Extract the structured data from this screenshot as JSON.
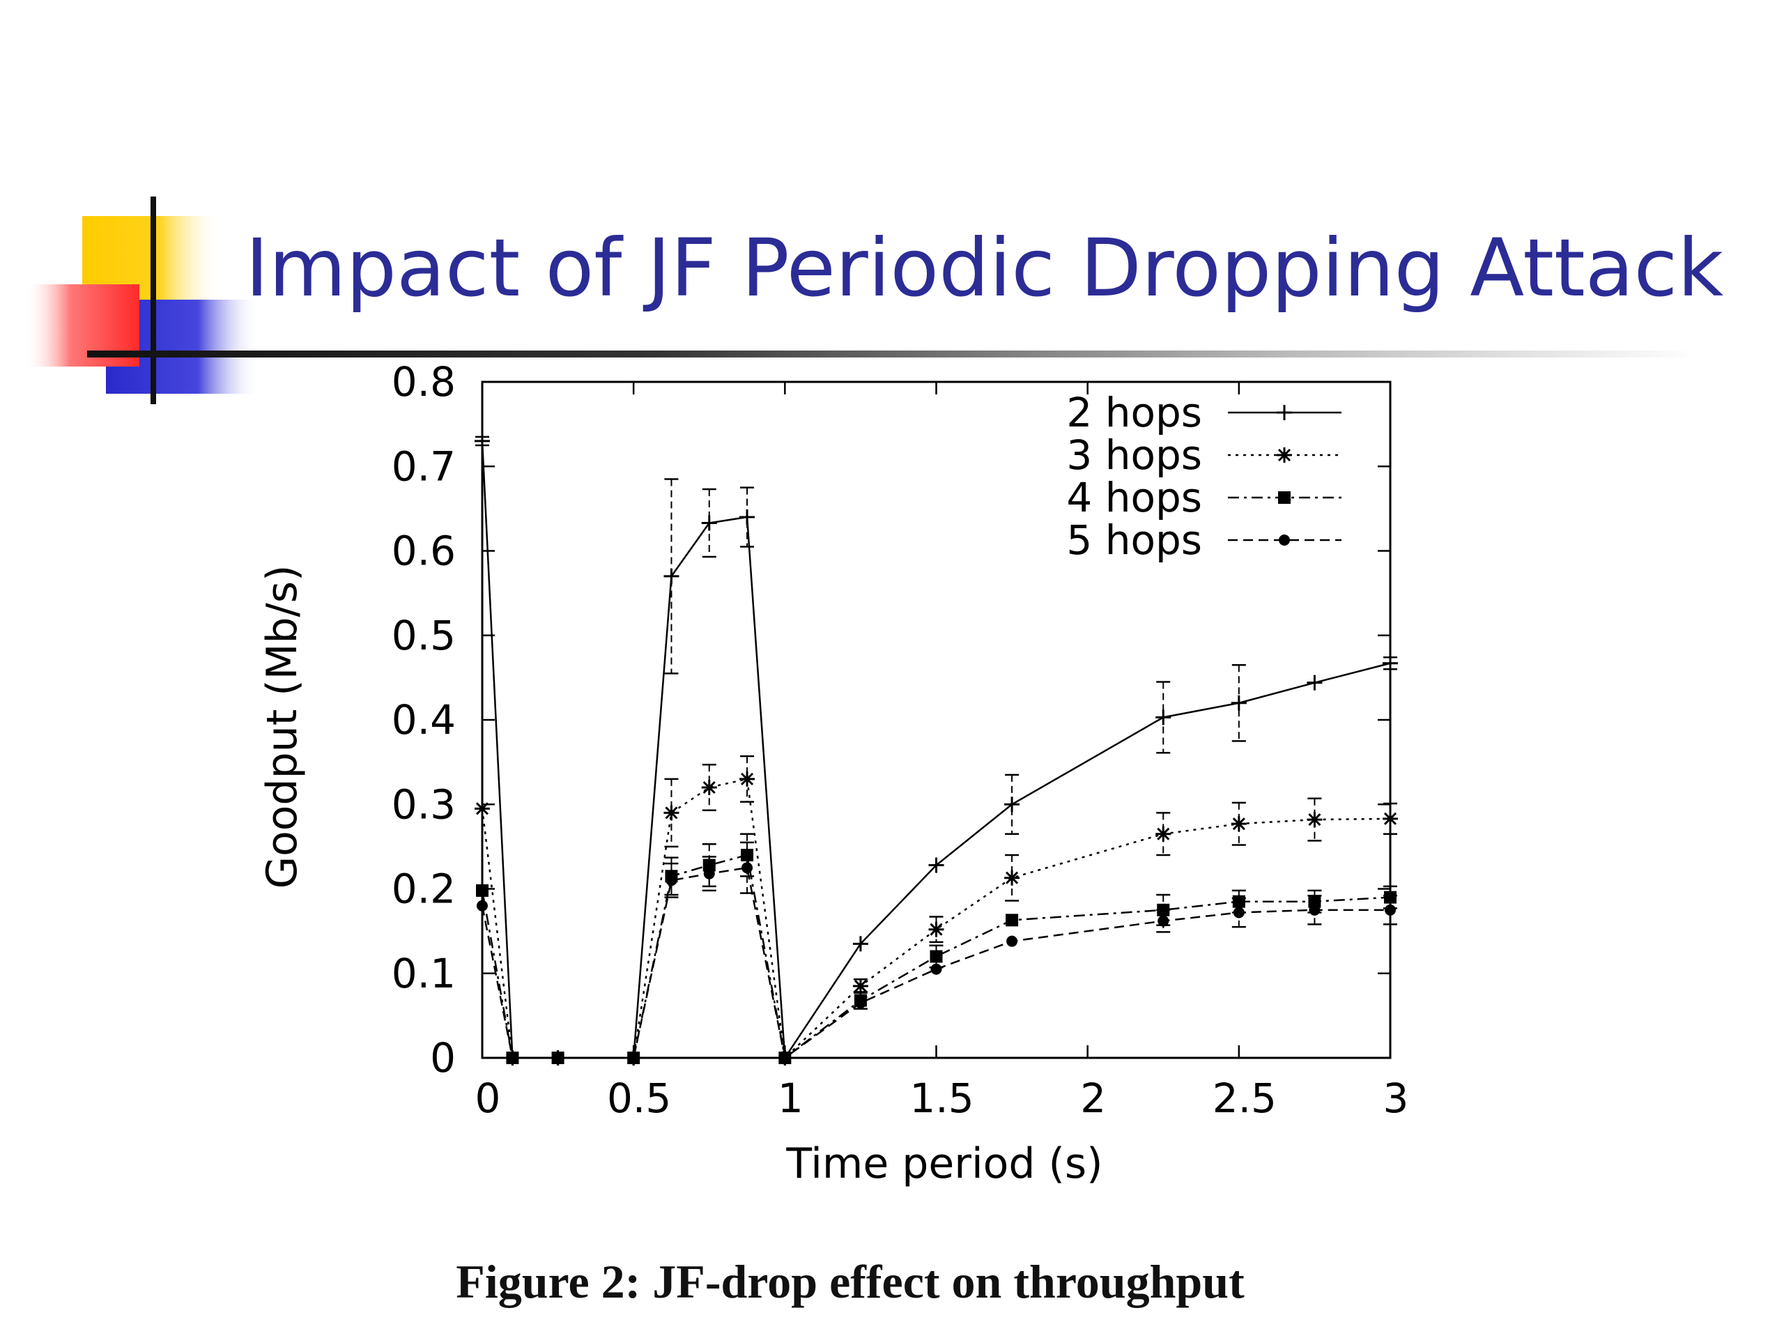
{
  "slide": {
    "title": "Impact of JF Periodic Dropping Attack",
    "caption": "Figure 2: JF-drop effect on throughput"
  },
  "colors": {
    "title": "#2c2c96",
    "accent_yellow": "#ffcc00",
    "accent_red": "#ff3b3b",
    "accent_blue": "#3333cc",
    "series": "#000000"
  },
  "chart_data": {
    "type": "line",
    "title": "",
    "xlabel": "Time period (s)",
    "ylabel": "Goodput (Mb/s)",
    "xlim": [
      0,
      3
    ],
    "ylim": [
      0,
      0.8
    ],
    "xticks": [
      "0",
      "0.5",
      "1",
      "1.5",
      "2",
      "2.5",
      "3"
    ],
    "yticks": [
      "0",
      "0.1",
      "0.2",
      "0.3",
      "0.4",
      "0.5",
      "0.6",
      "0.7",
      "0.8"
    ],
    "legend_position": "top-right",
    "grid": false,
    "error_bars": true,
    "series": [
      {
        "name": "2 hops",
        "marker": "plus",
        "dash": "solid",
        "points": [
          {
            "x": 0,
            "y": 0.73,
            "err": 0.005
          },
          {
            "x": 0.1,
            "y": 0
          },
          {
            "x": 0.25,
            "y": 0
          },
          {
            "x": 0.5,
            "y": 0
          },
          {
            "x": 0.625,
            "y": 0.57,
            "err": 0.115
          },
          {
            "x": 0.75,
            "y": 0.633,
            "err": 0.04
          },
          {
            "x": 0.875,
            "y": 0.64,
            "err": 0.035
          },
          {
            "x": 1,
            "y": 0
          },
          {
            "x": 1.25,
            "y": 0.135
          },
          {
            "x": 1.5,
            "y": 0.228
          },
          {
            "x": 1.75,
            "y": 0.3,
            "err": 0.035
          },
          {
            "x": 2.25,
            "y": 0.403,
            "err": 0.042
          },
          {
            "x": 2.5,
            "y": 0.42,
            "err": 0.045
          },
          {
            "x": 2.75,
            "y": 0.444
          },
          {
            "x": 3,
            "y": 0.467,
            "err": 0.007
          }
        ]
      },
      {
        "name": "3 hops",
        "marker": "star",
        "dash": "dotted",
        "points": [
          {
            "x": 0,
            "y": 0.295
          },
          {
            "x": 0.1,
            "y": 0
          },
          {
            "x": 0.25,
            "y": 0
          },
          {
            "x": 0.5,
            "y": 0
          },
          {
            "x": 0.625,
            "y": 0.29,
            "err": 0.04
          },
          {
            "x": 0.75,
            "y": 0.32,
            "err": 0.027
          },
          {
            "x": 0.875,
            "y": 0.33,
            "err": 0.027
          },
          {
            "x": 1,
            "y": 0
          },
          {
            "x": 1.25,
            "y": 0.085,
            "err": 0.008
          },
          {
            "x": 1.5,
            "y": 0.152,
            "err": 0.015
          },
          {
            "x": 1.75,
            "y": 0.213,
            "err": 0.027
          },
          {
            "x": 2.25,
            "y": 0.265,
            "err": 0.025
          },
          {
            "x": 2.5,
            "y": 0.277,
            "err": 0.025
          },
          {
            "x": 2.75,
            "y": 0.282,
            "err": 0.025
          },
          {
            "x": 3,
            "y": 0.283,
            "err": 0.018
          }
        ]
      },
      {
        "name": "4 hops",
        "marker": "square",
        "dash": "dashdot",
        "points": [
          {
            "x": 0,
            "y": 0.198
          },
          {
            "x": 0.1,
            "y": 0
          },
          {
            "x": 0.25,
            "y": 0
          },
          {
            "x": 0.5,
            "y": 0
          },
          {
            "x": 0.625,
            "y": 0.215,
            "err": 0.022
          },
          {
            "x": 0.75,
            "y": 0.228,
            "err": 0.025
          },
          {
            "x": 0.875,
            "y": 0.24,
            "err": 0.025
          },
          {
            "x": 1,
            "y": 0
          },
          {
            "x": 1.25,
            "y": 0.068,
            "err": 0.01
          },
          {
            "x": 1.5,
            "y": 0.12,
            "err": 0.013
          },
          {
            "x": 1.75,
            "y": 0.163
          },
          {
            "x": 2.25,
            "y": 0.175,
            "err": 0.018
          },
          {
            "x": 2.5,
            "y": 0.185,
            "err": 0.013
          },
          {
            "x": 2.75,
            "y": 0.185,
            "err": 0.013
          },
          {
            "x": 3,
            "y": 0.19,
            "err": 0.013
          }
        ]
      },
      {
        "name": "5 hops",
        "marker": "dot",
        "dash": "dashed",
        "points": [
          {
            "x": 0,
            "y": 0.18
          },
          {
            "x": 0.1,
            "y": 0
          },
          {
            "x": 0.25,
            "y": 0
          },
          {
            "x": 0.5,
            "y": 0
          },
          {
            "x": 0.625,
            "y": 0.21,
            "err": 0.02
          },
          {
            "x": 0.75,
            "y": 0.218,
            "err": 0.02
          },
          {
            "x": 0.875,
            "y": 0.225,
            "err": 0.03
          },
          {
            "x": 1,
            "y": 0
          },
          {
            "x": 1.25,
            "y": 0.065
          },
          {
            "x": 1.5,
            "y": 0.105
          },
          {
            "x": 1.75,
            "y": 0.138
          },
          {
            "x": 2.25,
            "y": 0.162,
            "err": 0.013
          },
          {
            "x": 2.5,
            "y": 0.172,
            "err": 0.017
          },
          {
            "x": 2.75,
            "y": 0.175,
            "err": 0.017
          },
          {
            "x": 3,
            "y": 0.175,
            "err": 0.017
          }
        ]
      }
    ]
  }
}
